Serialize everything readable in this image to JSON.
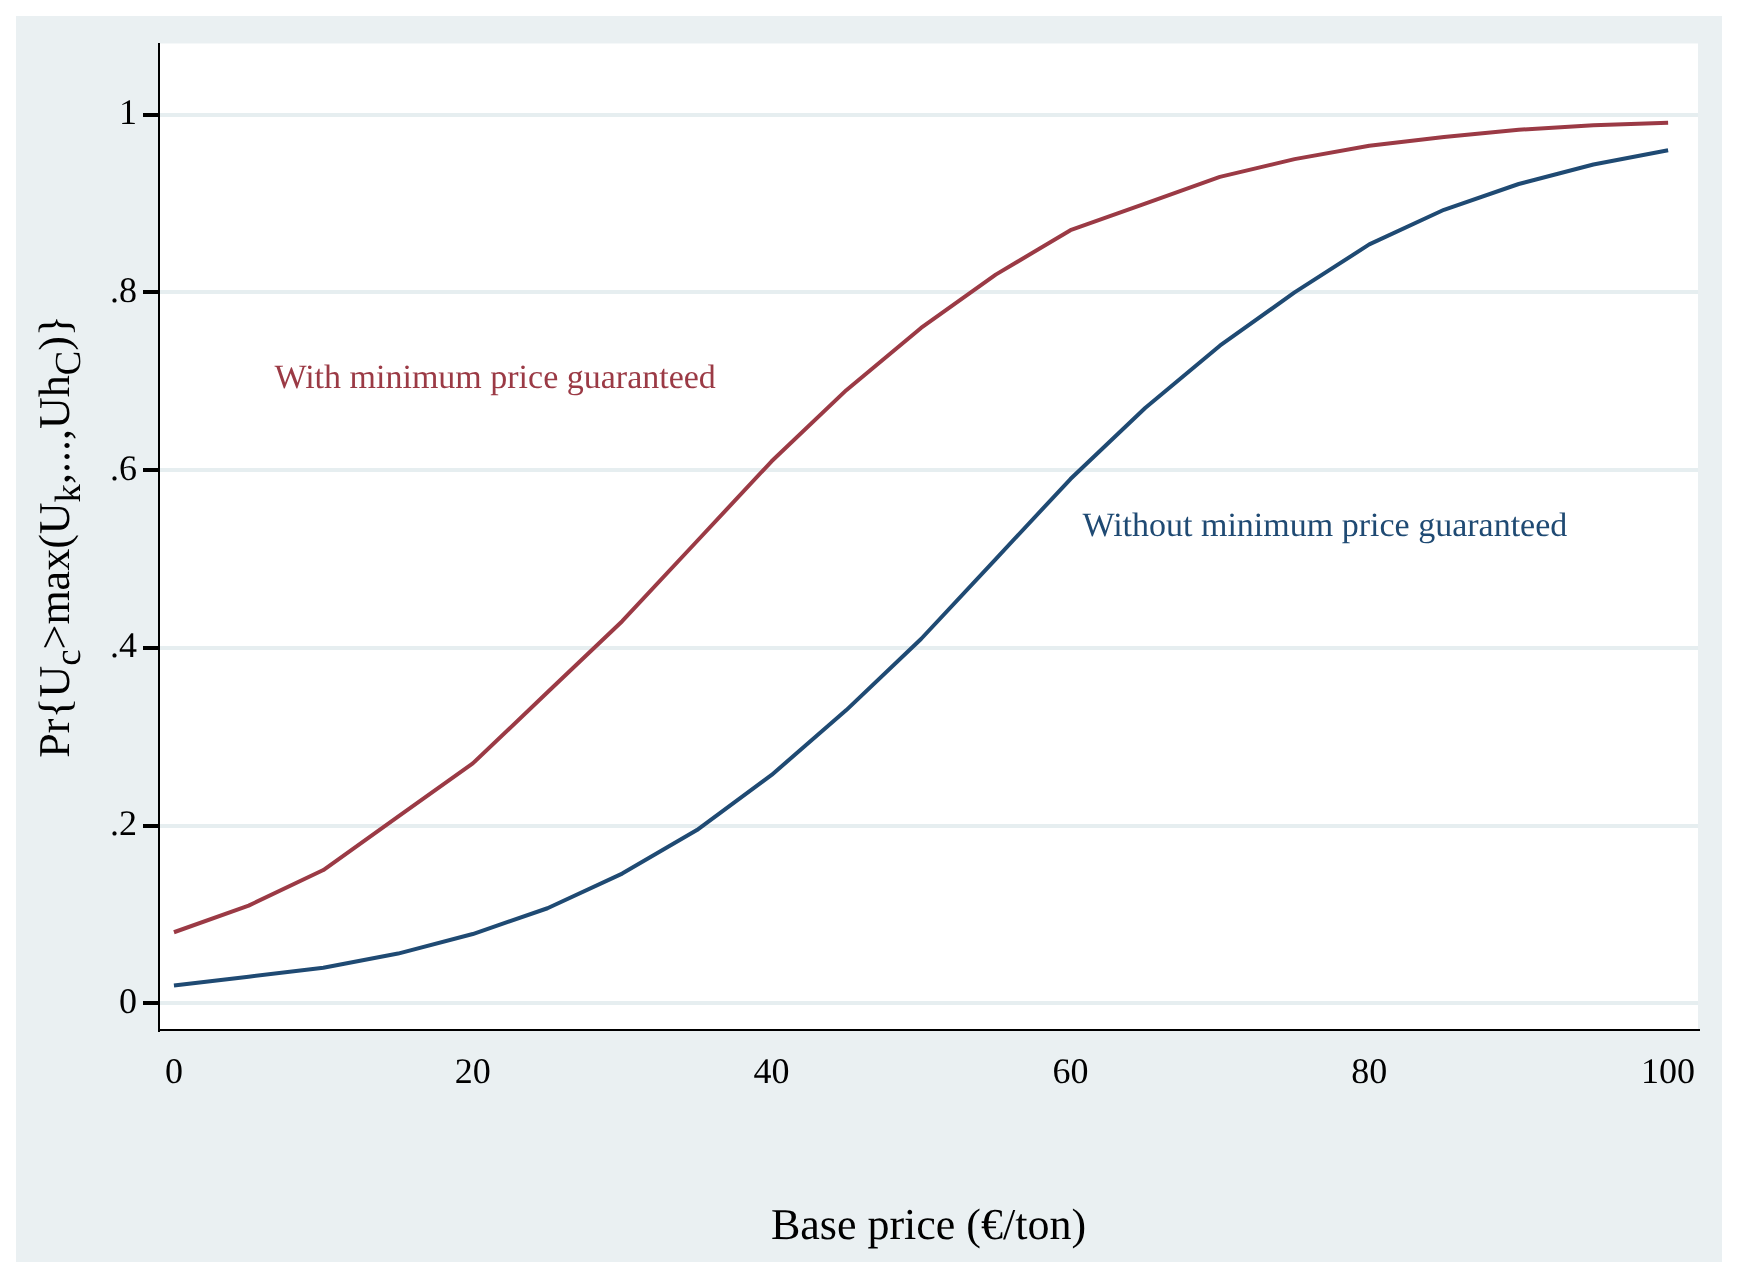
{
  "chart_data": {
    "type": "line",
    "xlabel": "Base price (€/ton)",
    "ylabel": "Pr{U$_{c}$>max(U$_{k}$,...,Uh$_{C}$)}",
    "x": [
      0,
      5,
      10,
      15,
      20,
      25,
      30,
      35,
      40,
      45,
      50,
      55,
      60,
      65,
      70,
      75,
      80,
      85,
      90,
      95,
      100
    ],
    "series": [
      {
        "name": "With minimum price guaranteed",
        "color": "#9b3a45",
        "values": [
          0.08,
          0.11,
          0.15,
          0.21,
          0.27,
          0.35,
          0.43,
          0.52,
          0.61,
          0.69,
          0.76,
          0.82,
          0.87,
          0.9,
          0.93,
          0.95,
          0.965,
          0.975,
          0.983,
          0.988,
          0.991
        ]
      },
      {
        "name": "Without minimum price guaranteed",
        "color": "#1f4a73",
        "values": [
          0.02,
          0.03,
          0.04,
          0.056,
          0.078,
          0.107,
          0.146,
          0.195,
          0.257,
          0.33,
          0.41,
          0.5,
          0.59,
          0.67,
          0.74,
          0.8,
          0.854,
          0.893,
          0.922,
          0.944,
          0.96
        ]
      }
    ],
    "xlim": [
      -1,
      102
    ],
    "xticks": [
      0,
      20,
      40,
      60,
      80,
      100
    ],
    "ylim": [
      -0.03,
      1.08
    ],
    "yticks": [
      {
        "value": 0,
        "label": "0"
      },
      {
        "value": 0.2,
        "label": ".2"
      },
      {
        "value": 0.4,
        "label": ".4"
      },
      {
        "value": 0.6,
        "label": ".6"
      },
      {
        "value": 0.8,
        "label": ".8"
      },
      {
        "value": 1,
        "label": "1"
      }
    ],
    "grid": "y",
    "legend": false,
    "marker": "none",
    "line_style": "solid"
  }
}
